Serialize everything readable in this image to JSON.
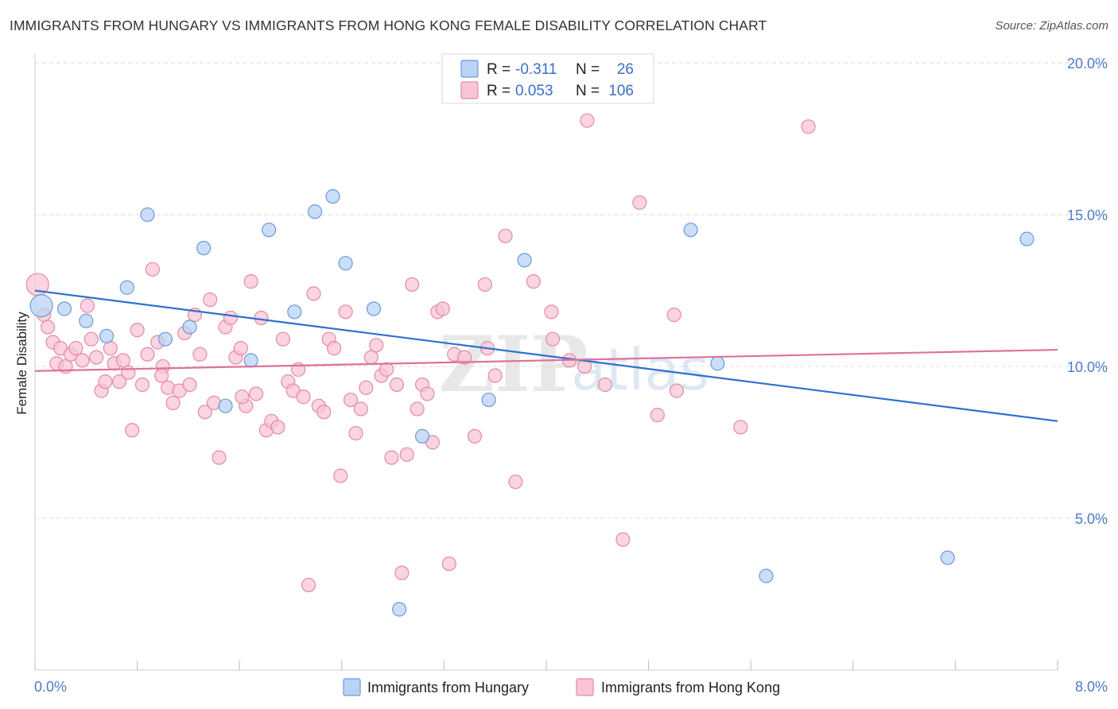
{
  "title": "IMMIGRANTS FROM HUNGARY VS IMMIGRANTS FROM HONG KONG FEMALE DISABILITY CORRELATION CHART",
  "source": "Source: ZipAtlas.com",
  "watermark": {
    "zip": "ZIP",
    "atlas": "atlas"
  },
  "legend": {
    "rows": [
      {
        "r_label": "R =",
        "r_value": "-0.311",
        "n_label": "N =",
        "n_value": "26"
      },
      {
        "r_label": "R =",
        "r_value": "0.053",
        "n_label": "N =",
        "n_value": "106"
      }
    ]
  },
  "colors": {
    "hungary_fill": "#b9d3f5",
    "hungary_stroke": "#6a9ad8",
    "hungary_line": "#2f6fd1",
    "hongkong_fill": "#f8c5d5",
    "hongkong_stroke": "#e58aa6",
    "hongkong_line": "#e0709a",
    "tick_label": "#4a7cc9",
    "grid": "#dddddd"
  },
  "chart_data": {
    "type": "scatter",
    "title": "IMMIGRANTS FROM HUNGARY VS IMMIGRANTS FROM HONG KONG FEMALE DISABILITY CORRELATION CHART",
    "xlabel": "",
    "ylabel": "Female Disability",
    "xlim": [
      0,
      8
    ],
    "ylim": [
      0,
      20.5
    ],
    "x_tick_labels": [
      "0.0%",
      "8.0%"
    ],
    "y_ticks": [
      5,
      10,
      15,
      20
    ],
    "y_tick_labels": [
      "5.0%",
      "10.0%",
      "15.0%",
      "20.0%"
    ],
    "grid": true,
    "legend_position": "top-center",
    "series": [
      {
        "name": "Immigrants from Hungary",
        "r": -0.311,
        "n": 26,
        "trend": {
          "x": [
            0,
            8
          ],
          "y": [
            12.5,
            8.2
          ]
        },
        "points": [
          [
            0.05,
            12.0
          ],
          [
            0.23,
            11.9
          ],
          [
            0.4,
            11.5
          ],
          [
            0.56,
            11.0
          ],
          [
            0.72,
            12.6
          ],
          [
            0.88,
            15.0
          ],
          [
            1.02,
            10.9
          ],
          [
            1.21,
            11.3
          ],
          [
            1.32,
            13.9
          ],
          [
            1.49,
            8.7
          ],
          [
            1.69,
            10.2
          ],
          [
            1.83,
            14.5
          ],
          [
            2.03,
            11.8
          ],
          [
            2.19,
            15.1
          ],
          [
            2.33,
            15.6
          ],
          [
            2.43,
            13.4
          ],
          [
            2.65,
            11.9
          ],
          [
            2.85,
            2.0
          ],
          [
            3.03,
            7.7
          ],
          [
            3.55,
            8.9
          ],
          [
            3.83,
            13.5
          ],
          [
            5.13,
            14.5
          ],
          [
            5.34,
            10.1
          ],
          [
            5.72,
            3.1
          ],
          [
            7.14,
            3.7
          ],
          [
            7.76,
            14.2
          ]
        ]
      },
      {
        "name": "Immigrants from Hong Kong",
        "r": 0.053,
        "n": 106,
        "trend": {
          "x": [
            0,
            8
          ],
          "y": [
            9.85,
            10.55
          ]
        },
        "points": [
          [
            0.02,
            12.7
          ],
          [
            0.07,
            11.7
          ],
          [
            0.1,
            11.3
          ],
          [
            0.14,
            10.8
          ],
          [
            0.17,
            10.1
          ],
          [
            0.2,
            10.6
          ],
          [
            0.24,
            10.0
          ],
          [
            0.28,
            10.4
          ],
          [
            0.32,
            10.6
          ],
          [
            0.37,
            10.2
          ],
          [
            0.41,
            12.0
          ],
          [
            0.44,
            10.9
          ],
          [
            0.48,
            10.3
          ],
          [
            0.52,
            9.2
          ],
          [
            0.55,
            9.5
          ],
          [
            0.59,
            10.6
          ],
          [
            0.62,
            10.1
          ],
          [
            0.66,
            9.5
          ],
          [
            0.69,
            10.2
          ],
          [
            0.73,
            9.8
          ],
          [
            0.76,
            7.9
          ],
          [
            0.8,
            11.2
          ],
          [
            0.84,
            9.4
          ],
          [
            0.88,
            10.4
          ],
          [
            0.92,
            13.2
          ],
          [
            0.96,
            10.8
          ],
          [
            1.0,
            10.0
          ],
          [
            1.04,
            9.3
          ],
          [
            1.08,
            8.8
          ],
          [
            1.13,
            9.2
          ],
          [
            1.17,
            11.1
          ],
          [
            1.21,
            9.4
          ],
          [
            1.25,
            11.7
          ],
          [
            1.29,
            10.4
          ],
          [
            1.33,
            8.5
          ],
          [
            1.37,
            12.2
          ],
          [
            1.4,
            8.8
          ],
          [
            1.44,
            7.0
          ],
          [
            1.49,
            11.3
          ],
          [
            1.53,
            11.6
          ],
          [
            1.57,
            10.3
          ],
          [
            1.61,
            10.6
          ],
          [
            1.65,
            8.7
          ],
          [
            1.69,
            12.8
          ],
          [
            1.73,
            9.1
          ],
          [
            1.77,
            11.6
          ],
          [
            1.81,
            7.9
          ],
          [
            1.85,
            8.2
          ],
          [
            1.9,
            8.0
          ],
          [
            1.94,
            10.9
          ],
          [
            1.98,
            9.5
          ],
          [
            2.02,
            9.2
          ],
          [
            2.06,
            9.9
          ],
          [
            2.1,
            9.0
          ],
          [
            2.14,
            2.8
          ],
          [
            2.18,
            12.4
          ],
          [
            2.22,
            8.7
          ],
          [
            2.26,
            8.5
          ],
          [
            2.3,
            10.9
          ],
          [
            2.34,
            10.6
          ],
          [
            2.39,
            6.4
          ],
          [
            2.43,
            11.8
          ],
          [
            2.47,
            8.9
          ],
          [
            2.51,
            7.8
          ],
          [
            2.55,
            8.6
          ],
          [
            2.59,
            9.3
          ],
          [
            2.63,
            10.3
          ],
          [
            2.67,
            10.7
          ],
          [
            2.71,
            9.7
          ],
          [
            2.75,
            9.9
          ],
          [
            2.79,
            7.0
          ],
          [
            2.83,
            9.4
          ],
          [
            2.87,
            3.2
          ],
          [
            2.91,
            7.1
          ],
          [
            2.95,
            12.7
          ],
          [
            2.99,
            8.6
          ],
          [
            3.03,
            9.4
          ],
          [
            3.07,
            9.1
          ],
          [
            3.11,
            7.5
          ],
          [
            3.15,
            11.8
          ],
          [
            3.19,
            11.9
          ],
          [
            3.24,
            3.5
          ],
          [
            3.28,
            10.4
          ],
          [
            3.36,
            10.3
          ],
          [
            3.44,
            7.7
          ],
          [
            3.52,
            12.7
          ],
          [
            3.6,
            9.7
          ],
          [
            3.68,
            14.3
          ],
          [
            3.76,
            6.2
          ],
          [
            3.9,
            12.8
          ],
          [
            4.04,
            11.8
          ],
          [
            4.18,
            10.2
          ],
          [
            4.32,
            18.1
          ],
          [
            4.46,
            9.4
          ],
          [
            4.6,
            4.3
          ],
          [
            4.73,
            15.4
          ],
          [
            4.87,
            8.4
          ],
          [
            5.0,
            11.7
          ],
          [
            5.52,
            8.0
          ],
          [
            6.05,
            17.9
          ],
          [
            3.54,
            10.6
          ],
          [
            4.05,
            10.9
          ],
          [
            4.3,
            10.0
          ],
          [
            5.02,
            9.2
          ],
          [
            1.62,
            9.0
          ],
          [
            0.99,
            9.7
          ]
        ]
      }
    ]
  },
  "bottom_legend": [
    {
      "label": "Immigrants from Hungary"
    },
    {
      "label": "Immigrants from Hong Kong"
    }
  ]
}
